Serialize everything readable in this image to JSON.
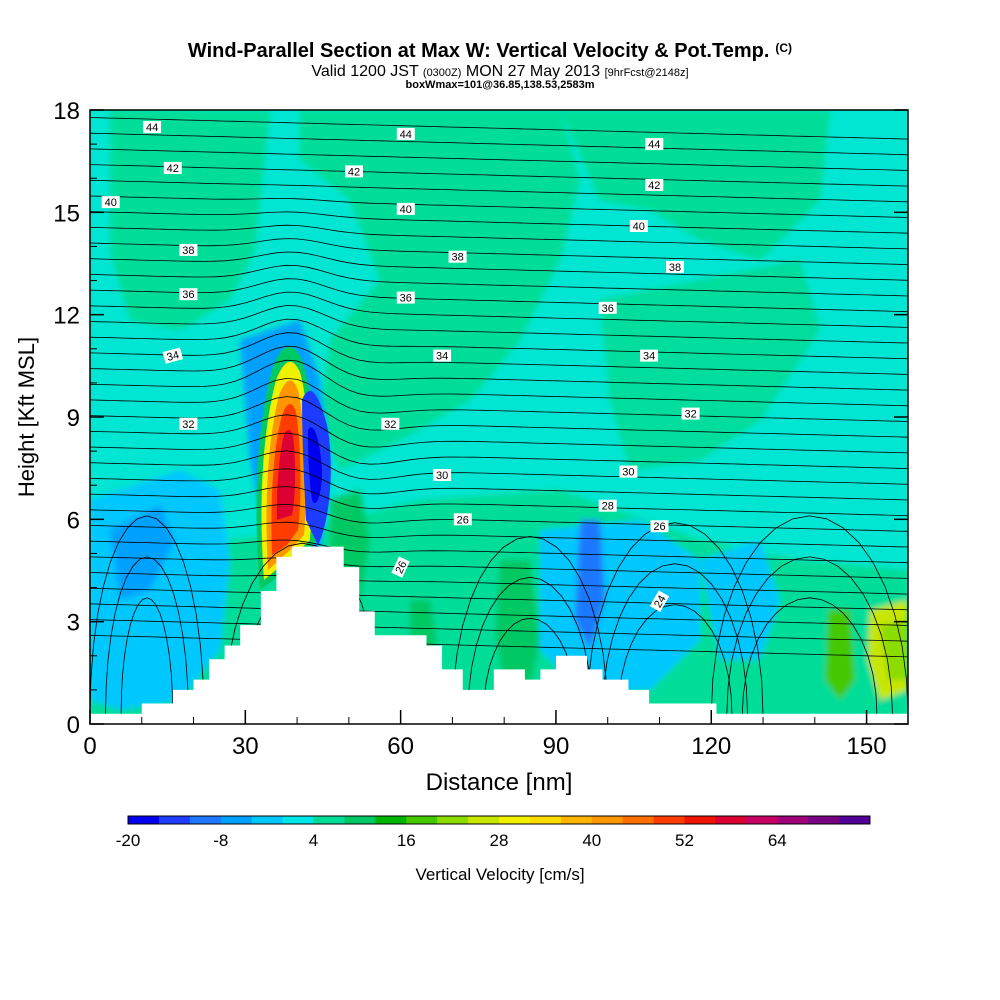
{
  "chart_data": {
    "type": "heatmap",
    "title": "Wind-Parallel Section at Max W: Vertical Velocity & Pot.Temp.",
    "title_mark": "(C)",
    "subtitle_valid": "Valid 1200 JST",
    "subtitle_zulu": "(0300Z)",
    "subtitle_date": "MON 27 May 2013",
    "subtitle_fcst": "[9hrFcst@2148z]",
    "subtitle2": "boxWmax=101@36.85,138.53,2583m",
    "xlabel": "Distance [nm]",
    "ylabel": "Height [Kft MSL]",
    "xlim": [
      0,
      158
    ],
    "ylim": [
      0,
      18
    ],
    "x_ticks": [
      0,
      30,
      60,
      90,
      120,
      150
    ],
    "y_ticks": [
      0,
      3,
      6,
      9,
      12,
      15,
      18
    ],
    "colorbar": {
      "label": "Vertical Velocity [cm/s]",
      "min": -20,
      "step": 4,
      "tick_labels": [
        -20,
        -8,
        4,
        16,
        28,
        40,
        52,
        64
      ],
      "colors": [
        "#0000f0",
        "#1e3cff",
        "#1e78ff",
        "#00a0ff",
        "#00c8ff",
        "#00e6e6",
        "#00dc96",
        "#00c864",
        "#00b400",
        "#44c800",
        "#8cdc00",
        "#c8e600",
        "#f0f000",
        "#ffdc00",
        "#ffb400",
        "#ff9600",
        "#ff6e00",
        "#ff3c00",
        "#f01400",
        "#dc0032",
        "#c80064",
        "#a00078",
        "#780082",
        "#500096"
      ]
    },
    "terrain": [
      [
        0,
        0.3
      ],
      [
        10,
        0.3
      ],
      [
        10,
        0.6
      ],
      [
        16,
        0.6
      ],
      [
        16,
        1.0
      ],
      [
        20,
        1.0
      ],
      [
        20,
        1.3
      ],
      [
        23,
        1.3
      ],
      [
        23,
        1.9
      ],
      [
        26,
        1.9
      ],
      [
        26,
        2.3
      ],
      [
        29,
        2.3
      ],
      [
        29,
        2.9
      ],
      [
        33,
        2.9
      ],
      [
        33,
        3.9
      ],
      [
        36,
        3.9
      ],
      [
        36,
        4.9
      ],
      [
        39,
        4.9
      ],
      [
        39,
        5.2
      ],
      [
        49,
        5.2
      ],
      [
        49,
        4.6
      ],
      [
        52,
        4.6
      ],
      [
        52,
        3.3
      ],
      [
        55,
        3.3
      ],
      [
        55,
        2.6
      ],
      [
        65,
        2.6
      ],
      [
        65,
        2.3
      ],
      [
        68,
        2.3
      ],
      [
        68,
        1.6
      ],
      [
        72,
        1.6
      ],
      [
        72,
        1.0
      ],
      [
        78,
        1.0
      ],
      [
        78,
        1.6
      ],
      [
        84,
        1.6
      ],
      [
        84,
        1.3
      ],
      [
        87,
        1.3
      ],
      [
        87,
        1.6
      ],
      [
        90,
        1.6
      ],
      [
        90,
        2.0
      ],
      [
        96,
        2.0
      ],
      [
        96,
        1.6
      ],
      [
        99,
        1.6
      ],
      [
        99,
        1.3
      ],
      [
        104,
        1.3
      ],
      [
        104,
        1.0
      ],
      [
        108,
        1.0
      ],
      [
        108,
        0.6
      ],
      [
        121,
        0.6
      ],
      [
        121,
        0.3
      ],
      [
        158,
        0.3
      ]
    ],
    "isentropes": [
      {
        "label": "24",
        "pos": [
          110,
          3.6
        ],
        "rot": -60
      },
      {
        "label": "26",
        "pos": [
          60,
          4.6
        ],
        "rot": -65
      },
      {
        "label": "26",
        "pos": [
          72,
          6.0
        ],
        "rot": 0
      },
      {
        "label": "26",
        "pos": [
          110,
          5.8
        ],
        "rot": 0
      },
      {
        "label": "28",
        "pos": [
          100,
          6.4
        ],
        "rot": 0
      },
      {
        "label": "30",
        "pos": [
          68,
          7.3
        ],
        "rot": 0
      },
      {
        "label": "30",
        "pos": [
          104,
          7.4
        ],
        "rot": 0
      },
      {
        "label": "32",
        "pos": [
          19,
          8.8
        ],
        "rot": 0
      },
      {
        "label": "32",
        "pos": [
          58,
          8.8
        ],
        "rot": 0
      },
      {
        "label": "32",
        "pos": [
          116,
          9.1
        ],
        "rot": 0
      },
      {
        "label": "34",
        "pos": [
          16,
          10.8
        ],
        "rot": -15
      },
      {
        "label": "34",
        "pos": [
          68,
          10.8
        ],
        "rot": 0
      },
      {
        "label": "34",
        "pos": [
          108,
          10.8
        ],
        "rot": 0
      },
      {
        "label": "36",
        "pos": [
          19,
          12.6
        ],
        "rot": 0
      },
      {
        "label": "36",
        "pos": [
          61,
          12.5
        ],
        "rot": 0
      },
      {
        "label": "36",
        "pos": [
          100,
          12.2
        ],
        "rot": 0
      },
      {
        "label": "38",
        "pos": [
          19,
          13.9
        ],
        "rot": 0
      },
      {
        "label": "38",
        "pos": [
          71,
          13.7
        ],
        "rot": 0
      },
      {
        "label": "38",
        "pos": [
          113,
          13.4
        ],
        "rot": 0
      },
      {
        "label": "40",
        "pos": [
          4,
          15.3
        ],
        "rot": 0
      },
      {
        "label": "40",
        "pos": [
          61,
          15.1
        ],
        "rot": 0
      },
      {
        "label": "40",
        "pos": [
          106,
          14.6
        ],
        "rot": 0
      },
      {
        "label": "42",
        "pos": [
          16,
          16.3
        ],
        "rot": 0
      },
      {
        "label": "42",
        "pos": [
          51,
          16.2
        ],
        "rot": 0
      },
      {
        "label": "42",
        "pos": [
          109,
          15.8
        ],
        "rot": 0
      },
      {
        "label": "44",
        "pos": [
          12,
          17.5
        ],
        "rot": 0
      },
      {
        "label": "44",
        "pos": [
          61,
          17.3
        ],
        "rot": 0
      },
      {
        "label": "44",
        "pos": [
          109,
          17.0
        ],
        "rot": 0
      }
    ],
    "grid": false,
    "legend": "bottom"
  }
}
